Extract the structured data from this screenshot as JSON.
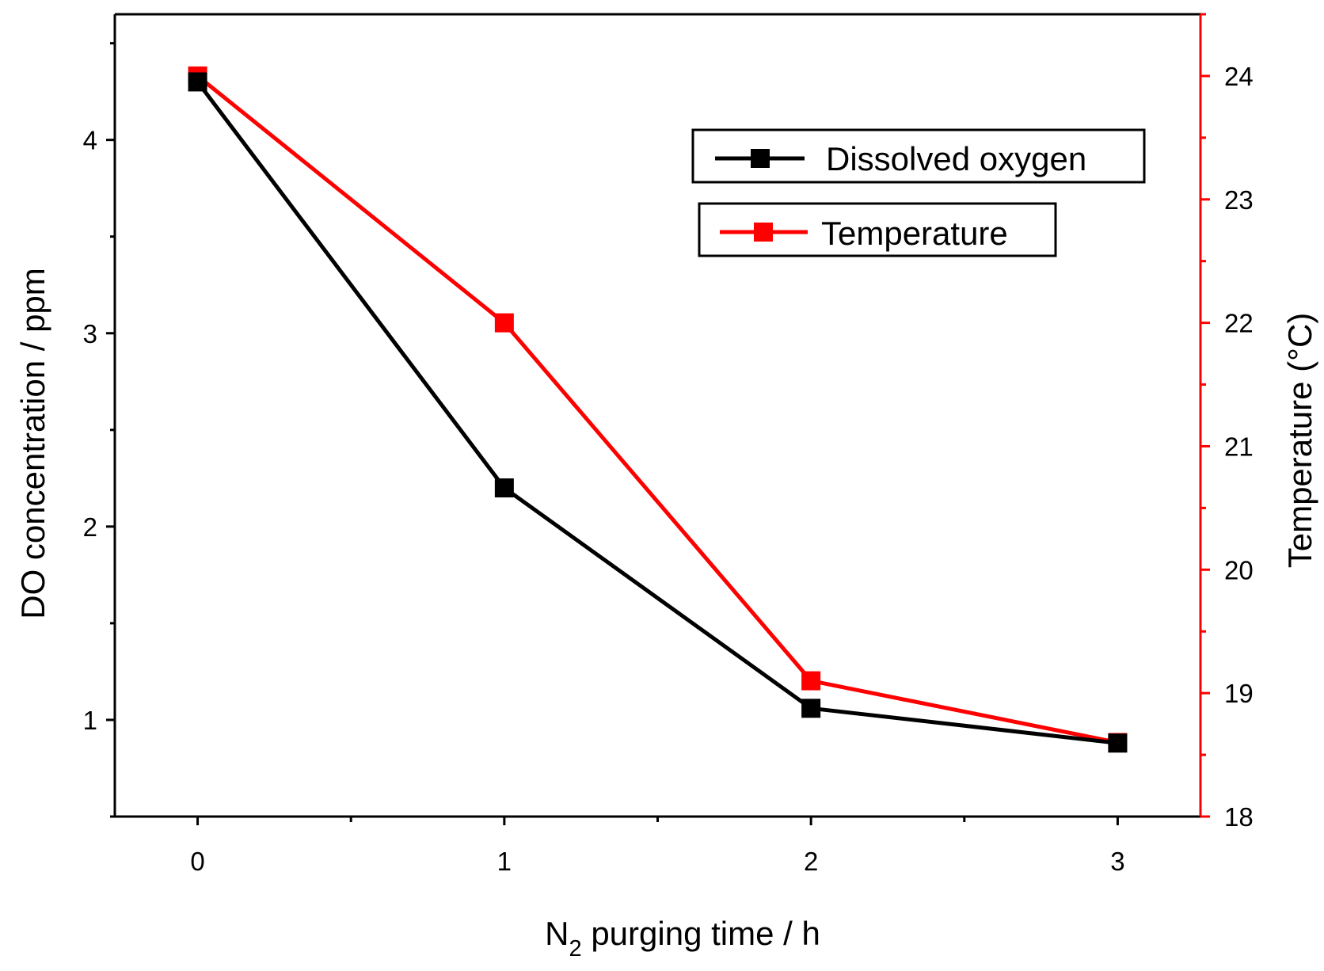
{
  "chart_data": {
    "type": "line",
    "x": [
      0,
      1,
      2,
      3
    ],
    "x_ticks": [
      "0",
      "1",
      "2",
      "3"
    ],
    "xlim": [
      -0.27,
      3.27
    ],
    "xlabel": {
      "main": "N",
      "sub": "2",
      "rest": " purging time / h"
    },
    "y_left": {
      "label": "DO concentration / ppm",
      "ylim": [
        0.5,
        4.65
      ],
      "ticks": [
        "1",
        "2",
        "3",
        "4"
      ],
      "color": "#000000"
    },
    "y_right": {
      "label": "Temperature (°C)",
      "ylim": [
        18,
        24.5
      ],
      "ticks": [
        "18",
        "19",
        "20",
        "21",
        "22",
        "23",
        "24"
      ],
      "color": "#ff0000"
    },
    "series": [
      {
        "name": "Dissolved oxygen",
        "axis": "left",
        "color": "#000000",
        "values": [
          4.3,
          2.2,
          1.06,
          0.88
        ]
      },
      {
        "name": "Temperature",
        "axis": "right",
        "color": "#ff0000",
        "values": [
          24.0,
          22.0,
          19.1,
          18.6
        ]
      }
    ],
    "grid": false,
    "legend": {
      "position": "top-right",
      "entries": [
        "Dissolved oxygen",
        "Temperature"
      ]
    }
  }
}
